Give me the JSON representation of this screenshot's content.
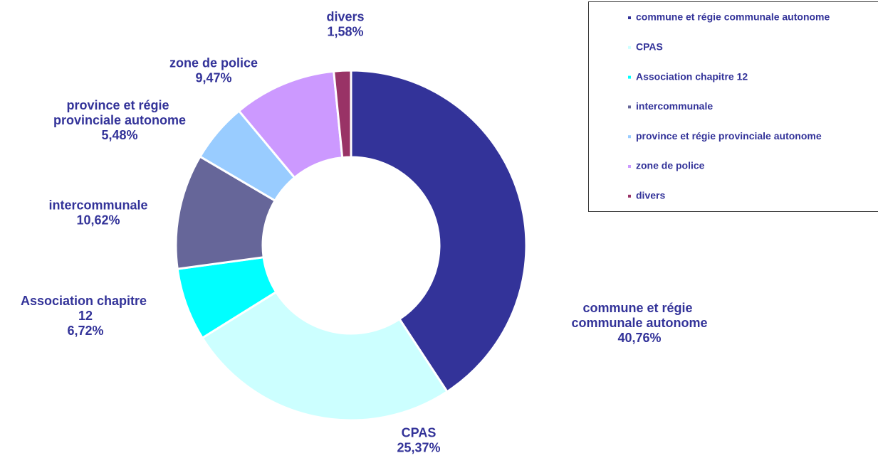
{
  "chart_data": {
    "type": "pie",
    "donut": true,
    "categories": [
      "commune et régie communale autonome",
      "CPAS",
      "Association chapitre 12",
      "intercommunale",
      "province et régie provinciale autonome",
      "zone de police",
      "divers"
    ],
    "values": [
      40.76,
      25.37,
      6.72,
      10.62,
      5.48,
      9.47,
      1.58
    ],
    "value_labels": [
      "40,76%",
      "25,37%",
      "6,72%",
      "10,62%",
      "5,48%",
      "9,47%",
      "1,58%"
    ],
    "colors": [
      "#333399",
      "#ccffff",
      "#00ffff",
      "#666699",
      "#99ccff",
      "#cc99ff",
      "#993366"
    ],
    "legend": "top-right"
  }
}
